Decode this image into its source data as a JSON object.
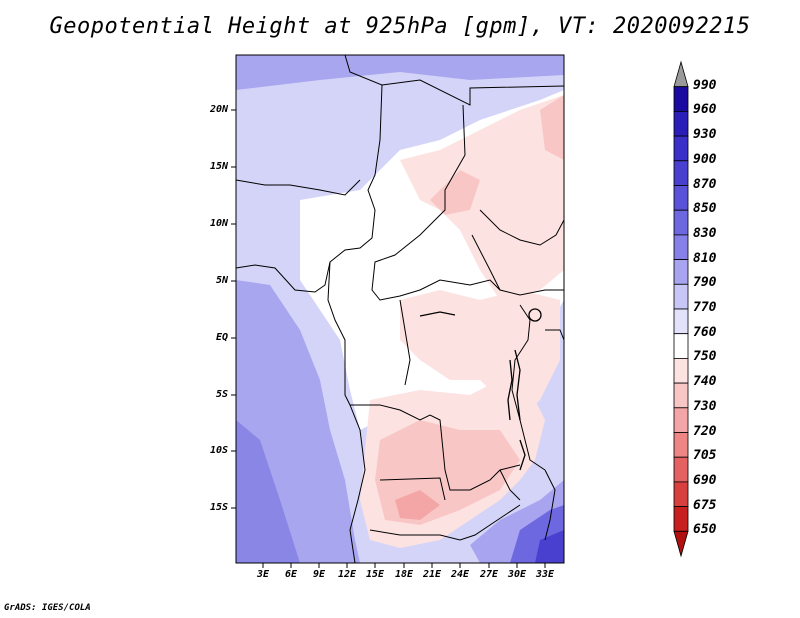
{
  "title": "Geopotential Height at 925hPa [gpm], VT: 2020092215",
  "credit": "GrADS: IGES/COLA",
  "map": {
    "lat_labels": [
      "20N",
      "15N",
      "10N",
      "5N",
      "EQ",
      "5S",
      "10S",
      "15S"
    ],
    "lon_labels": [
      "3E",
      "6E",
      "9E",
      "12E",
      "15E",
      "18E",
      "21E",
      "24E",
      "27E",
      "30E",
      "33E"
    ]
  },
  "colorbar": {
    "levels": [
      "990",
      "960",
      "930",
      "900",
      "870",
      "850",
      "830",
      "810",
      "790",
      "770",
      "760",
      "750",
      "740",
      "730",
      "720",
      "705",
      "690",
      "675",
      "650"
    ],
    "colors": [
      "#9a9a9a",
      "#1a0aa0",
      "#2b1db8",
      "#3a2fc8",
      "#4a40d0",
      "#5a52d8",
      "#6e68e0",
      "#8680e8",
      "#a8a4f0",
      "#c8c6f6",
      "#e2e2fb",
      "#ffffff",
      "#fde2e2",
      "#f9c6c6",
      "#f4a6a6",
      "#ee8686",
      "#e46262",
      "#d84040",
      "#c82020",
      "#b01010"
    ]
  }
}
